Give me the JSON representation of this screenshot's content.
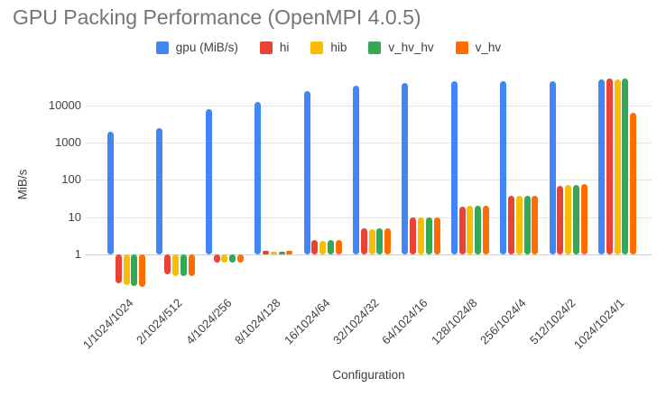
{
  "chart_data": {
    "type": "bar",
    "title": "GPU Packing Performance (OpenMPI 4.0.5)",
    "xlabel": "Configuration",
    "ylabel": "MiB/s",
    "y_scale": "log",
    "grid": true,
    "legend_position": "top",
    "ylim": [
      0.1,
      100000
    ],
    "yticks": [
      1,
      10,
      100,
      1000,
      10000
    ],
    "ytick_labels": [
      "1",
      "10",
      "100",
      "1000",
      "10000"
    ],
    "categories": [
      "1/1024/1024",
      "2/1024/512",
      "4/1024/256",
      "8/1024/128",
      "16/1024/64",
      "32/1024/32",
      "64/1024/16",
      "128/1024/8",
      "256/1024/4",
      "512/1024/2",
      "1024/1024/1"
    ],
    "series": [
      {
        "name": "gpu (MiB/s)",
        "color": "#4285F4",
        "values": [
          2000,
          2400,
          7900,
          12000,
          24000,
          33000,
          40000,
          43000,
          45000,
          44000,
          48000
        ]
      },
      {
        "name": "hi",
        "color": "#EA4335",
        "values": [
          0.17,
          0.29,
          0.62,
          1.25,
          2.4,
          5,
          10,
          19,
          37,
          70,
          52000
        ]
      },
      {
        "name": "hib",
        "color": "#FBBC04",
        "values": [
          0.15,
          0.27,
          0.6,
          1.2,
          2.3,
          4.8,
          9.7,
          20,
          38,
          74,
          48000
        ]
      },
      {
        "name": "v_hv_hv",
        "color": "#34A853",
        "values": [
          0.14,
          0.27,
          0.6,
          1.2,
          2.4,
          4.9,
          10,
          20,
          38,
          71,
          51000
        ]
      },
      {
        "name": "v_hv",
        "color": "#FF6D01",
        "values": [
          0.135,
          0.26,
          0.62,
          1.25,
          2.4,
          5,
          10,
          20,
          38,
          75,
          6100
        ]
      }
    ],
    "colors": {
      "title_text": "#757575",
      "axis_text": "#3c4043",
      "gridline": "#e3e3e3"
    }
  }
}
